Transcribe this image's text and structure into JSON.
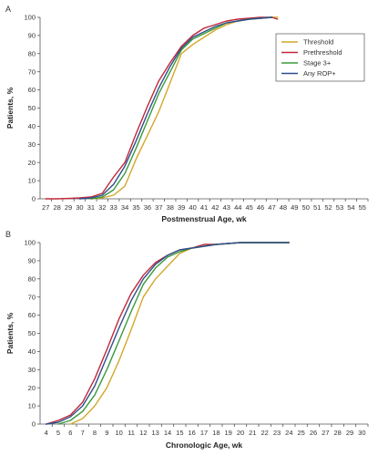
{
  "chart_data": [
    {
      "type": "line",
      "panel_label": "A",
      "xlabel": "Postmenstrual Age, wk",
      "ylabel": "Patients, %",
      "categories": [
        "27",
        "28",
        "29",
        "30",
        "31",
        "32",
        "33",
        "34",
        "35",
        "36",
        "37",
        "38",
        "39",
        "40",
        "41",
        "42",
        "43",
        "44",
        "45",
        "46",
        "47",
        "48",
        "49",
        "50",
        "51",
        "52",
        "53",
        "54",
        "55"
      ],
      "ylim": [
        0,
        100
      ],
      "yticks": [
        "0",
        "10",
        "20",
        "30",
        "40",
        "50",
        "60",
        "70",
        "80",
        "90",
        "100"
      ],
      "legend": "top-right",
      "series": [
        {
          "name": "Threshold",
          "color": "#d4a72c",
          "x": [
            31,
            32,
            33,
            34,
            35,
            36,
            37,
            38,
            39,
            40,
            41,
            42,
            43,
            44,
            45,
            46,
            47,
            47.5
          ],
          "y": [
            0,
            0.5,
            2,
            7,
            22,
            35,
            48,
            64,
            80,
            85,
            89,
            93,
            96,
            98,
            99,
            99.5,
            100,
            100
          ]
        },
        {
          "name": "Prethreshold",
          "color": "#c0283a",
          "x": [
            27,
            28,
            29,
            30,
            31,
            32,
            33,
            34,
            35,
            36,
            37,
            38,
            39,
            40,
            41,
            42,
            43,
            44,
            45,
            46,
            47,
            47.5
          ],
          "y": [
            0,
            0,
            0.2,
            0.5,
            1,
            3,
            12,
            20,
            36,
            51,
            65,
            75,
            84,
            90,
            94,
            96,
            98,
            99,
            99.5,
            100,
            100,
            99
          ]
        },
        {
          "name": "Stage 3+",
          "color": "#3a9a3a",
          "x": [
            31,
            32,
            33,
            34,
            35,
            36,
            37,
            38,
            39,
            40,
            41,
            42,
            43,
            44,
            45,
            46,
            47
          ],
          "y": [
            0,
            1,
            5,
            14,
            28,
            43,
            58,
            70,
            82,
            88,
            91,
            94,
            97,
            98,
            99,
            99.5,
            100
          ]
        },
        {
          "name": "Any ROP+",
          "color": "#2f4f8a",
          "x": [
            30,
            31,
            32,
            33,
            34,
            35,
            36,
            37,
            38,
            39,
            40,
            41,
            42,
            43,
            44,
            45,
            46,
            47
          ],
          "y": [
            0,
            0.5,
            2,
            8,
            18,
            32,
            47,
            61,
            73,
            83,
            89,
            92,
            95,
            97,
            98,
            99,
            99.5,
            100
          ]
        }
      ]
    },
    {
      "type": "line",
      "panel_label": "B",
      "xlabel": "Chronologic Age, wk",
      "ylabel": "Patients, %",
      "categories": [
        "4",
        "5",
        "6",
        "7",
        "8",
        "9",
        "10",
        "11",
        "12",
        "13",
        "14",
        "15",
        "16",
        "17",
        "18",
        "19",
        "20",
        "21",
        "22",
        "23",
        "24",
        "25",
        "26",
        "27",
        "28",
        "29",
        "30"
      ],
      "ylim": [
        0,
        100
      ],
      "yticks": [
        "0",
        "10",
        "20",
        "30",
        "40",
        "50",
        "60",
        "70",
        "80",
        "90",
        "100"
      ],
      "series": [
        {
          "name": "Threshold",
          "color": "#d4a72c",
          "x": [
            6,
            7,
            8,
            9,
            10,
            11,
            12,
            13,
            14,
            15,
            16,
            17,
            18,
            19,
            20,
            21,
            22,
            23,
            24
          ],
          "y": [
            0,
            3,
            10,
            20,
            35,
            52,
            70,
            80,
            87,
            94,
            97,
            98,
            99,
            99.5,
            100,
            100,
            100,
            100,
            100
          ]
        },
        {
          "name": "Prethreshold",
          "color": "#c0283a",
          "x": [
            4,
            5,
            6,
            7,
            8,
            9,
            10,
            11,
            12,
            13,
            14,
            15,
            16,
            17,
            18,
            19,
            20,
            21,
            22,
            23,
            24
          ],
          "y": [
            0,
            2,
            5,
            12,
            25,
            41,
            58,
            72,
            82,
            89,
            93,
            96,
            97,
            99,
            99,
            99.5,
            100,
            100,
            100,
            100,
            100
          ]
        },
        {
          "name": "Stage 3+",
          "color": "#3a9a3a",
          "x": [
            5,
            6,
            7,
            8,
            9,
            10,
            11,
            12,
            13,
            14,
            15,
            16,
            17,
            18,
            19,
            20,
            21,
            22,
            23,
            24
          ],
          "y": [
            0,
            2,
            7,
            16,
            30,
            46,
            62,
            77,
            86,
            92,
            95,
            97,
            98,
            99,
            99.5,
            100,
            100,
            100,
            100,
            100
          ]
        },
        {
          "name": "Any ROP+",
          "color": "#2f4f8a",
          "x": [
            4,
            5,
            6,
            7,
            8,
            9,
            10,
            11,
            12,
            13,
            14,
            15,
            16,
            17,
            18,
            19,
            20,
            21,
            22,
            23,
            24
          ],
          "y": [
            0,
            1,
            4,
            10,
            21,
            37,
            53,
            68,
            80,
            88,
            93,
            96,
            97,
            98,
            99,
            99.5,
            100,
            100,
            100,
            100,
            100
          ]
        }
      ]
    }
  ]
}
